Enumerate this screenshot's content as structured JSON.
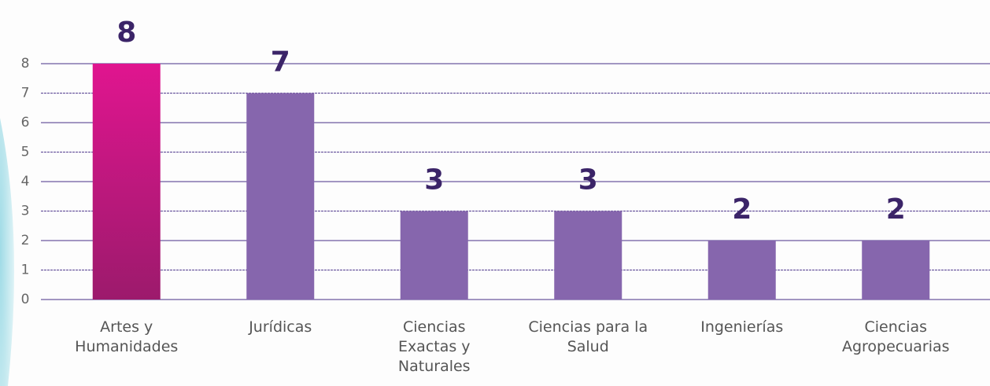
{
  "chart_data": {
    "type": "bar",
    "categories": [
      "Artes y Humanidades",
      "Jurídicas",
      "Ciencias Exactas y Naturales",
      "Ciencias para la Salud",
      "Ingenierías",
      "Ciencias Agropecuarias"
    ],
    "values": [
      8,
      7,
      3,
      3,
      2,
      2
    ],
    "colors": [
      "#c0187e",
      "#8666ad",
      "#8666ad",
      "#8666ad",
      "#8666ad",
      "#8666ad"
    ],
    "ylim": [
      0,
      8
    ],
    "yticks": [
      0,
      1,
      2,
      3,
      4,
      5,
      6,
      7,
      8
    ],
    "grid": true
  }
}
